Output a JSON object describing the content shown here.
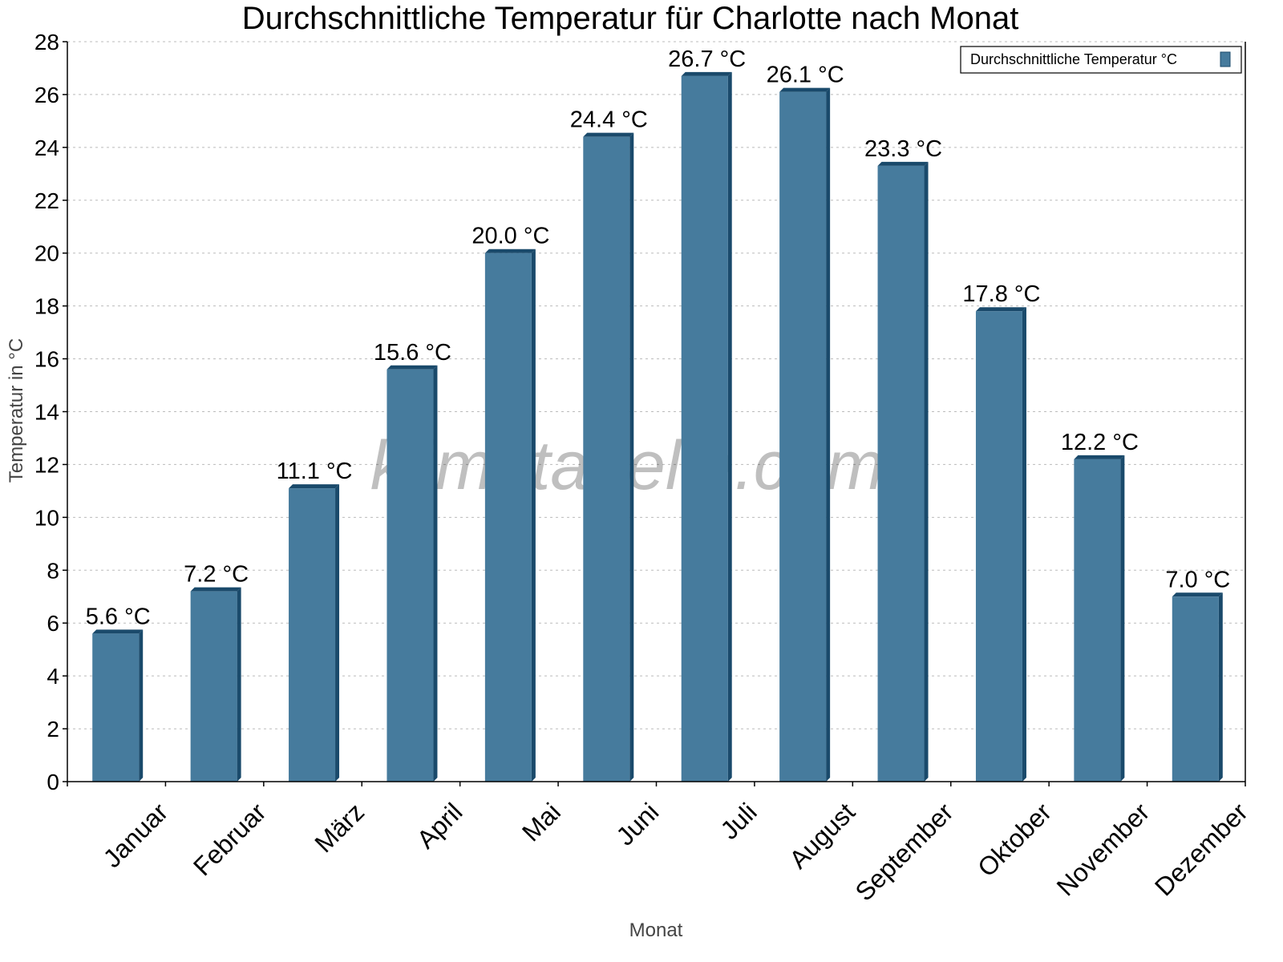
{
  "chart_data": {
    "type": "bar",
    "title": "Durchschnittliche Temperatur für Charlotte nach Monat",
    "xlabel": "Monat",
    "ylabel": "Temperatur in °C",
    "categories": [
      "Januar",
      "Februar",
      "März",
      "April",
      "Mai",
      "Juni",
      "Juli",
      "August",
      "September",
      "Oktober",
      "November",
      "Dezember"
    ],
    "series": [
      {
        "name": "Durchschnittliche Temperatur °C",
        "values": [
          5.6,
          7.2,
          11.1,
          15.6,
          20.0,
          24.4,
          26.7,
          26.1,
          23.3,
          17.8,
          12.2,
          7.0
        ]
      }
    ],
    "data_labels": [
      "5.6 °C",
      "7.2 °C",
      "11.1 °C",
      "15.6 °C",
      "20.0 °C",
      "24.4 °C",
      "26.7 °C",
      "26.1 °C",
      "23.3 °C",
      "17.8 °C",
      "12.2 °C",
      "7.0 °C"
    ],
    "ylim": [
      0,
      28
    ],
    "yticks": [
      0,
      2,
      4,
      6,
      8,
      10,
      12,
      14,
      16,
      18,
      20,
      22,
      24,
      26,
      28
    ],
    "grid": true,
    "legend_position": "top-right",
    "colors": {
      "bar": "#467b9d",
      "bar_shade": "#1a4a6b"
    },
    "watermark": "klimatabelle.com"
  }
}
